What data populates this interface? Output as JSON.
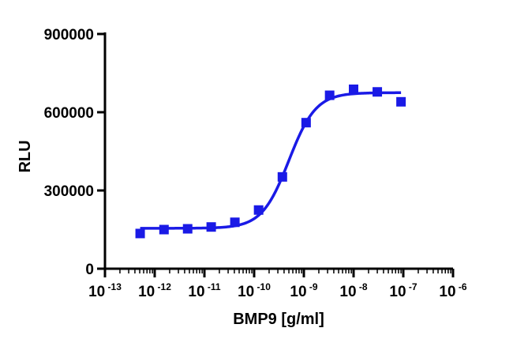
{
  "chart_data": {
    "type": "scatter",
    "title": "",
    "xlabel": "BMP9 [g/ml]",
    "ylabel": "RLU",
    "x_scale": "log",
    "xlim": [
      1e-13,
      1e-06
    ],
    "ylim": [
      0,
      900000
    ],
    "x_tick_labels": [
      {
        "base": "10",
        "exp": "-13"
      },
      {
        "base": "10",
        "exp": "-12"
      },
      {
        "base": "10",
        "exp": "-11"
      },
      {
        "base": "10",
        "exp": "-10"
      },
      {
        "base": "10",
        "exp": "-9"
      },
      {
        "base": "10",
        "exp": "-8"
      },
      {
        "base": "10",
        "exp": "-7"
      },
      {
        "base": "10",
        "exp": "-6"
      }
    ],
    "y_tick_labels": [
      "0",
      "300000",
      "600000",
      "900000"
    ],
    "y_ticks": [
      0,
      300000,
      600000,
      900000
    ],
    "grid": false,
    "legend": "none",
    "marker_color": "#1a1ae6",
    "curve_color": "#1a1ae6",
    "series": [
      {
        "points": [
          {
            "x": 5.1e-13,
            "y": 135000
          },
          {
            "x": 1.54e-12,
            "y": 150000
          },
          {
            "x": 4.6e-12,
            "y": 153000
          },
          {
            "x": 1.37e-11,
            "y": 160000
          },
          {
            "x": 4.1e-11,
            "y": 178000
          },
          {
            "x": 1.23e-10,
            "y": 225000
          },
          {
            "x": 3.7e-10,
            "y": 352000
          },
          {
            "x": 1.11e-09,
            "y": 560000
          },
          {
            "x": 3.3e-09,
            "y": 665000
          },
          {
            "x": 1e-08,
            "y": 688000
          },
          {
            "x": 3e-08,
            "y": 678000
          },
          {
            "x": 9e-08,
            "y": 640000
          }
        ],
        "fit": {
          "model": "4PL",
          "bottom": 155000,
          "top": 675000,
          "ec50": 5e-10,
          "hill": 1.6,
          "x_min": 5.1e-13,
          "x_max": 9e-08
        }
      }
    ]
  }
}
